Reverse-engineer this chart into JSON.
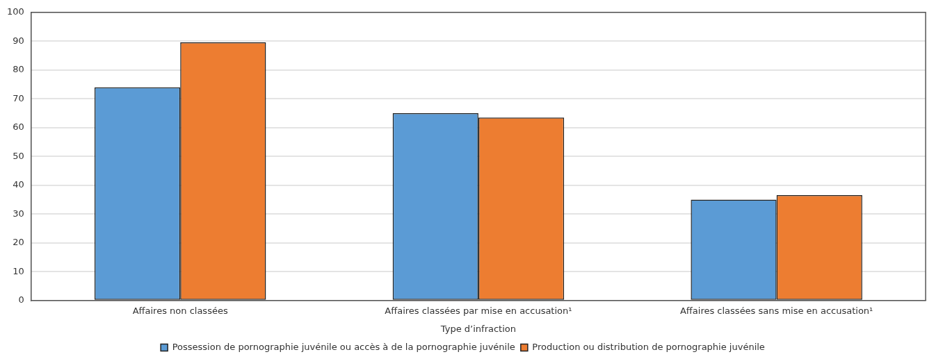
{
  "chart_data": {
    "type": "bar",
    "xlabel": "Type d’infraction",
    "categories": [
      "Affaires non classées",
      "Affaires classées par mise en accusation¹",
      "Affaires classées sans mise en accusation¹"
    ],
    "series": [
      {
        "name": "Possession de pornographie juvénile ou accès à de la pornographie juvénile",
        "color": "#5b9bd5",
        "values": [
          74,
          65,
          35
        ]
      },
      {
        "name": "Production ou distribution de pornographie juvénile",
        "color": "#ed7d31",
        "values": [
          89.6,
          63.5,
          36.6
        ]
      }
    ],
    "ylim": [
      0,
      100
    ],
    "yticks": [
      0,
      10,
      20,
      30,
      40,
      50,
      60,
      70,
      80,
      90,
      100
    ],
    "grid": "y",
    "legend": "bottom"
  }
}
